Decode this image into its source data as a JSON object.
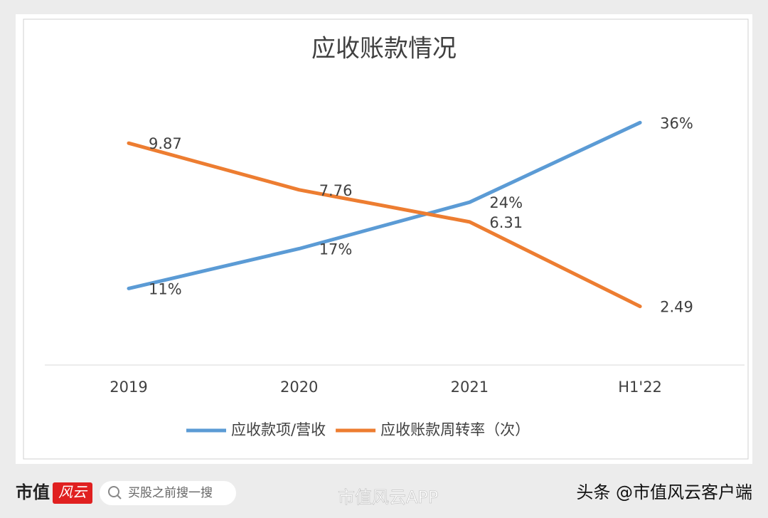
{
  "chart_data": {
    "type": "line",
    "title": "应收账款情况",
    "categories": [
      "2019",
      "2020",
      "2021",
      "H1'22"
    ],
    "series": [
      {
        "name": "应收款项/营收",
        "color": "#5b9bd5",
        "values": [
          11,
          17,
          24,
          36
        ],
        "value_labels": [
          "11%",
          "17%",
          "24%",
          "36%"
        ]
      },
      {
        "name": "应收账款周转率（次）",
        "color": "#ed7d31",
        "values": [
          9.87,
          7.76,
          6.31,
          2.49
        ],
        "axis": "y2"
      }
    ],
    "ylim": [
      0,
      40
    ],
    "y2lim": [
      0,
      12
    ],
    "grid": false,
    "legend": "bottom"
  },
  "footer": {
    "brand": "市值",
    "brand_mark": "风云",
    "search": "买股之前搜一搜",
    "watermark": "市值风云APP",
    "source": "头条 @市值风云客户端"
  }
}
